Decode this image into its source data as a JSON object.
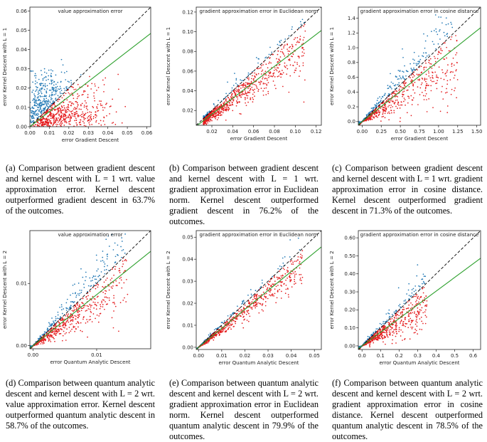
{
  "figure": {
    "panels": [
      {
        "id": "a",
        "plot_title": "value approximation error",
        "xlabel": "error Gradient Descent",
        "ylabel": "error Kernel Descent with L = 1",
        "caption": "(a) Comparison between gradient descent and kernel descent with L = 1 wrt. value approximation error. Kernel descent outperformed gradient descent in 63.7% of the outcomes."
      },
      {
        "id": "b",
        "plot_title": "gradient approximation error in Euclidean norm",
        "xlabel": "error Gradient Descent",
        "ylabel": "error Kernel Descent with L = 1",
        "caption": "(b) Comparison between gradient descent and kernel descent with L = 1 wrt. gradient approximation error in Euclidean norm. Kernel descent outperformed gradient descent in 76.2% of the outcomes."
      },
      {
        "id": "c",
        "plot_title": "gradient approximation error in cosine distance",
        "xlabel": "error Gradient Descent",
        "ylabel": "error Kernel Descent with L = 1",
        "caption": "(c) Comparison between gradient descent and kernel descent with L = 1 wrt. gradient approximation error in cosine distance. Kernel descent outperformed gradient descent in 71.3% of the outcomes."
      },
      {
        "id": "d",
        "plot_title": "value approximation error",
        "xlabel": "error Quantum Analytic Descent",
        "ylabel": "error Kernel Descent with L = 2",
        "caption": "(d) Comparison between quantum analytic descent and kernel descent with L = 2 wrt. value approximation error. Kernel descent outperformed quantum analytic descent in 58.7% of the outcomes."
      },
      {
        "id": "e",
        "plot_title": "gradient approximation error in Euclidean norm",
        "xlabel": "error Quantum Analytic Descent",
        "ylabel": "error Kernel Descent with L = 2",
        "caption": "(e) Comparison between quantum analytic descent and kernel descent with L = 2 wrt. gradient approximation error in Euclidean norm. Kernel descent outperformed quantum analytic descent in 79.9% of the outcomes."
      },
      {
        "id": "f",
        "plot_title": "gradient approximation error in cosine distance",
        "xlabel": "error Quantum Analytic Descent",
        "ylabel": "error Kernel Descent with L = 2",
        "caption": "(f) Comparison between quantum analytic descent and kernel descent with L = 2 wrt. gradient approximation error in cosine distance. Kernel descent outperformed quantum analytic descent in 78.5% of the outcomes."
      }
    ]
  },
  "chart_data": [
    {
      "type": "scatter",
      "title": "value approximation error",
      "xlabel": "error Gradient Descent",
      "ylabel": "error Kernel Descent with L = 1",
      "xlim": [
        0,
        0.062
      ],
      "ylim": [
        0,
        0.062
      ],
      "xticks": [
        0.0,
        0.01,
        0.02,
        0.03,
        0.04,
        0.05,
        0.06
      ],
      "yticks": [
        0.0,
        0.01,
        0.02,
        0.03,
        0.04,
        0.05,
        0.06
      ],
      "xtick_labels": [
        "0.00",
        "0.01",
        "0.02",
        "0.03",
        "0.04",
        "0.05",
        "0.06"
      ],
      "ytick_labels": [
        "0.00",
        "0.01",
        "0.02",
        "0.03",
        "0.04",
        "0.05",
        "0.06"
      ],
      "diagonal": true,
      "fit_slope": 0.78,
      "cloud": {
        "x_max": 0.045,
        "y_max": 0.03,
        "spread": 0.6
      },
      "colors": {
        "kernel_better": "#1f77b4",
        "other_better": "#e41a1c",
        "fit": "#2ca02c",
        "diagonal": "#000000"
      }
    },
    {
      "type": "scatter",
      "title": "gradient approximation error in Euclidean norm",
      "xlabel": "error Gradient Descent",
      "ylabel": "error Kernel Descent with L = 1",
      "xlim": [
        0.005,
        0.125
      ],
      "ylim": [
        0.005,
        0.125
      ],
      "xticks": [
        0.02,
        0.04,
        0.06,
        0.08,
        0.1,
        0.12
      ],
      "yticks": [
        0.02,
        0.04,
        0.06,
        0.08,
        0.1,
        0.12
      ],
      "xtick_labels": [
        "0.02",
        "0.04",
        "0.06",
        "0.08",
        "0.10",
        "0.12"
      ],
      "ytick_labels": [
        "0.02",
        "0.04",
        "0.06",
        "0.08",
        "0.10",
        "0.12"
      ],
      "diagonal": true,
      "fit_slope": 0.81,
      "cloud": {
        "x_min": 0.012,
        "x_max": 0.11,
        "spread": 0.28
      },
      "colors": {
        "kernel_better": "#1f77b4",
        "other_better": "#e41a1c",
        "fit": "#2ca02c",
        "diagonal": "#000000"
      }
    },
    {
      "type": "scatter",
      "title": "gradient approximation error in cosine distance",
      "xlabel": "error Gradient Descent",
      "ylabel": "error Kernel Descent with L = 1",
      "xlim": [
        -0.05,
        1.55
      ],
      "ylim": [
        -0.05,
        1.55
      ],
      "xticks": [
        0.0,
        0.25,
        0.5,
        0.75,
        1.0,
        1.25,
        1.5
      ],
      "yticks": [
        0.0,
        0.2,
        0.4,
        0.6,
        0.8,
        1.0,
        1.2,
        1.4
      ],
      "xtick_labels": [
        "0.00",
        "0.25",
        "0.50",
        "0.75",
        "1.00",
        "1.25",
        "1.50"
      ],
      "ytick_labels": [
        "0.0",
        "0.2",
        "0.4",
        "0.6",
        "0.8",
        "1.0",
        "1.2",
        "1.4"
      ],
      "diagonal": true,
      "fit_slope": 0.82,
      "cloud": {
        "x_max": 1.25,
        "spread": 0.55
      },
      "colors": {
        "kernel_better": "#1f77b4",
        "other_better": "#e41a1c",
        "fit": "#2ca02c",
        "diagonal": "#000000"
      }
    },
    {
      "type": "scatter",
      "title": "value approximation error",
      "xlabel": "error Quantum Analytic Descent",
      "ylabel": "error Kernel Descent with L = 2",
      "xlim": [
        -0.0005,
        0.0185
      ],
      "ylim": [
        -0.0005,
        0.0185
      ],
      "xticks": [
        0.0,
        0.01
      ],
      "yticks": [
        0.0,
        0.01
      ],
      "xtick_labels": [
        "0.00",
        "0.01"
      ],
      "ytick_labels": [
        "0.00",
        "0.01"
      ],
      "diagonal": true,
      "fit_slope": 0.82,
      "cloud": {
        "x_max": 0.015,
        "spread": 0.5
      },
      "colors": {
        "kernel_better": "#1f77b4",
        "other_better": "#e41a1c",
        "fit": "#2ca02c",
        "diagonal": "#000000"
      }
    },
    {
      "type": "scatter",
      "title": "gradient approximation error in Euclidean norm",
      "xlabel": "error Quantum Analytic Descent",
      "ylabel": "error Kernel Descent with L = 2",
      "xlim": [
        -0.001,
        0.053
      ],
      "ylim": [
        -0.001,
        0.053
      ],
      "xticks": [
        0.0,
        0.01,
        0.02,
        0.03,
        0.04,
        0.05
      ],
      "yticks": [
        0.0,
        0.01,
        0.02,
        0.03,
        0.04,
        0.05
      ],
      "xtick_labels": [
        "0.00",
        "0.01",
        "0.02",
        "0.03",
        "0.04",
        "0.05"
      ],
      "ytick_labels": [
        "0.00",
        "0.01",
        "0.02",
        "0.03",
        "0.04",
        "0.05"
      ],
      "diagonal": true,
      "fit_slope": 0.86,
      "cloud": {
        "x_max": 0.045,
        "spread": 0.22
      },
      "colors": {
        "kernel_better": "#1f77b4",
        "other_better": "#e41a1c",
        "fit": "#2ca02c",
        "diagonal": "#000000"
      }
    },
    {
      "type": "scatter",
      "title": "gradient approximation error in cosine distance",
      "xlabel": "error Quantum Analytic Descent",
      "ylabel": "error Kernel Descent with L = 2",
      "xlim": [
        -0.02,
        0.64
      ],
      "ylim": [
        -0.02,
        0.64
      ],
      "xticks": [
        0.0,
        0.1,
        0.2,
        0.3,
        0.4,
        0.5,
        0.6
      ],
      "yticks": [
        0.0,
        0.1,
        0.2,
        0.3,
        0.4,
        0.5,
        0.6
      ],
      "xtick_labels": [
        "0.0",
        "0.1",
        "0.2",
        "0.3",
        "0.4",
        "0.5",
        "0.6"
      ],
      "ytick_labels": [
        "0.00",
        "0.10",
        "0.20",
        "0.30",
        "0.40",
        "0.50",
        "0.60"
      ],
      "diagonal": true,
      "fit_slope": 0.76,
      "cloud": {
        "x_max": 0.35,
        "spread": 0.45
      },
      "colors": {
        "kernel_better": "#1f77b4",
        "other_better": "#e41a1c",
        "fit": "#2ca02c",
        "diagonal": "#000000"
      }
    }
  ]
}
